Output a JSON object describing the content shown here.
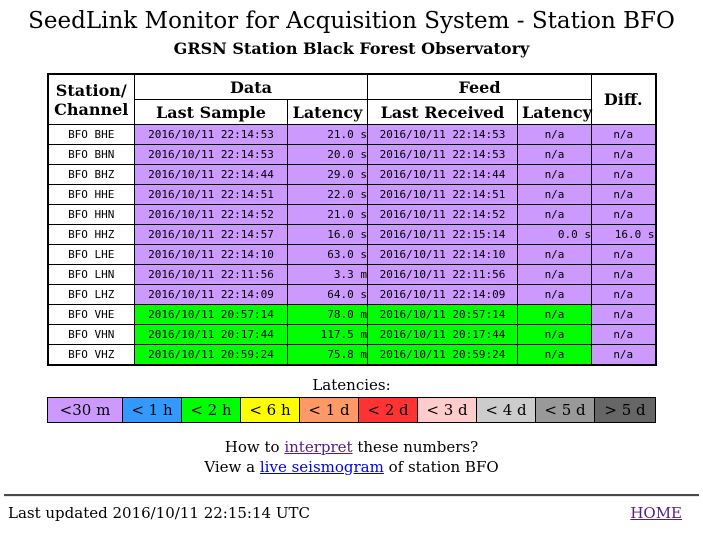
{
  "page": {
    "title": "SeedLink Monitor for Acquisition System - Station BFO",
    "subtitle": "GRSN Station Black Forest Observatory"
  },
  "colors": {
    "purple": "#cc99ff",
    "green": "#00ff00",
    "white": "#ffffff",
    "visited_link": "#551a8b",
    "blue_link": "#0000ee"
  },
  "table": {
    "headers": {
      "station_line1": "Station/",
      "station_line2": "Channel",
      "data_group": "Data",
      "feed_group": "Feed",
      "last_sample": "Last Sample",
      "data_latency": "Latency",
      "last_received": "Last Received",
      "feed_latency": "Latency",
      "diff": "Diff."
    },
    "rows": [
      {
        "channel": "BFO BHE",
        "last_sample": "2016/10/11 22:14:53",
        "data_latency": "21.0 s",
        "last_received": "2016/10/11 22:14:53",
        "feed_latency": "n/a",
        "diff": "n/a",
        "row_color": "#cc99ff",
        "diff_color": "#cc99ff"
      },
      {
        "channel": "BFO BHN",
        "last_sample": "2016/10/11 22:14:53",
        "data_latency": "20.0 s",
        "last_received": "2016/10/11 22:14:53",
        "feed_latency": "n/a",
        "diff": "n/a",
        "row_color": "#cc99ff",
        "diff_color": "#cc99ff"
      },
      {
        "channel": "BFO BHZ",
        "last_sample": "2016/10/11 22:14:44",
        "data_latency": "29.0 s",
        "last_received": "2016/10/11 22:14:44",
        "feed_latency": "n/a",
        "diff": "n/a",
        "row_color": "#cc99ff",
        "diff_color": "#cc99ff"
      },
      {
        "channel": "BFO HHE",
        "last_sample": "2016/10/11 22:14:51",
        "data_latency": "22.0 s",
        "last_received": "2016/10/11 22:14:51",
        "feed_latency": "n/a",
        "diff": "n/a",
        "row_color": "#cc99ff",
        "diff_color": "#cc99ff"
      },
      {
        "channel": "BFO HHN",
        "last_sample": "2016/10/11 22:14:52",
        "data_latency": "21.0 s",
        "last_received": "2016/10/11 22:14:52",
        "feed_latency": "n/a",
        "diff": "n/a",
        "row_color": "#cc99ff",
        "diff_color": "#cc99ff"
      },
      {
        "channel": "BFO HHZ",
        "last_sample": "2016/10/11 22:14:57",
        "data_latency": "16.0 s",
        "last_received": "2016/10/11 22:15:14",
        "feed_latency": "0.0 s",
        "diff": "16.0 s",
        "row_color": "#cc99ff",
        "diff_color": "#cc99ff"
      },
      {
        "channel": "BFO LHE",
        "last_sample": "2016/10/11 22:14:10",
        "data_latency": "63.0 s",
        "last_received": "2016/10/11 22:14:10",
        "feed_latency": "n/a",
        "diff": "n/a",
        "row_color": "#cc99ff",
        "diff_color": "#cc99ff"
      },
      {
        "channel": "BFO LHN",
        "last_sample": "2016/10/11 22:11:56",
        "data_latency": "3.3 m",
        "last_received": "2016/10/11 22:11:56",
        "feed_latency": "n/a",
        "diff": "n/a",
        "row_color": "#cc99ff",
        "diff_color": "#cc99ff"
      },
      {
        "channel": "BFO LHZ",
        "last_sample": "2016/10/11 22:14:09",
        "data_latency": "64.0 s",
        "last_received": "2016/10/11 22:14:09",
        "feed_latency": "n/a",
        "diff": "n/a",
        "row_color": "#cc99ff",
        "diff_color": "#cc99ff"
      },
      {
        "channel": "BFO VHE",
        "last_sample": "2016/10/11 20:57:14",
        "data_latency": "78.0 m",
        "last_received": "2016/10/11 20:57:14",
        "feed_latency": "n/a",
        "diff": "n/a",
        "row_color": "#00ff00",
        "diff_color": "#cc99ff"
      },
      {
        "channel": "BFO VHN",
        "last_sample": "2016/10/11 20:17:44",
        "data_latency": "117.5 m",
        "last_received": "2016/10/11 20:17:44",
        "feed_latency": "n/a",
        "diff": "n/a",
        "row_color": "#00ff00",
        "diff_color": "#cc99ff"
      },
      {
        "channel": "BFO VHZ",
        "last_sample": "2016/10/11 20:59:24",
        "data_latency": "75.8 m",
        "last_received": "2016/10/11 20:59:24",
        "feed_latency": "n/a",
        "diff": "n/a",
        "row_color": "#00ff00",
        "diff_color": "#cc99ff"
      }
    ]
  },
  "legend": {
    "label": "Latencies:",
    "items": [
      {
        "label": "<30 m",
        "color": "#cc99ff",
        "text": "#000000"
      },
      {
        "label": "< 1 h",
        "color": "#3399ff",
        "text": "#000000"
      },
      {
        "label": "< 2 h",
        "color": "#00ff00",
        "text": "#000000"
      },
      {
        "label": "< 6 h",
        "color": "#ffff00",
        "text": "#000000"
      },
      {
        "label": "< 1 d",
        "color": "#ff9966",
        "text": "#000000"
      },
      {
        "label": "< 2 d",
        "color": "#ff3333",
        "text": "#000000"
      },
      {
        "label": "< 3 d",
        "color": "#ffcccc",
        "text": "#000000"
      },
      {
        "label": "< 4 d",
        "color": "#cccccc",
        "text": "#000000"
      },
      {
        "label": "< 5 d",
        "color": "#999999",
        "text": "#000000"
      },
      {
        "label": "> 5 d",
        "color": "#666666",
        "text": "#000000"
      }
    ]
  },
  "links": {
    "interpret_prefix": "How to ",
    "interpret_link": "interpret",
    "interpret_suffix": " these numbers?",
    "seismogram_prefix": "View a ",
    "seismogram_link": "live seismogram",
    "seismogram_suffix": " of station BFO"
  },
  "footer": {
    "last_updated": "Last updated 2016/10/11 22:15:14 UTC",
    "home_link": "HOME"
  }
}
